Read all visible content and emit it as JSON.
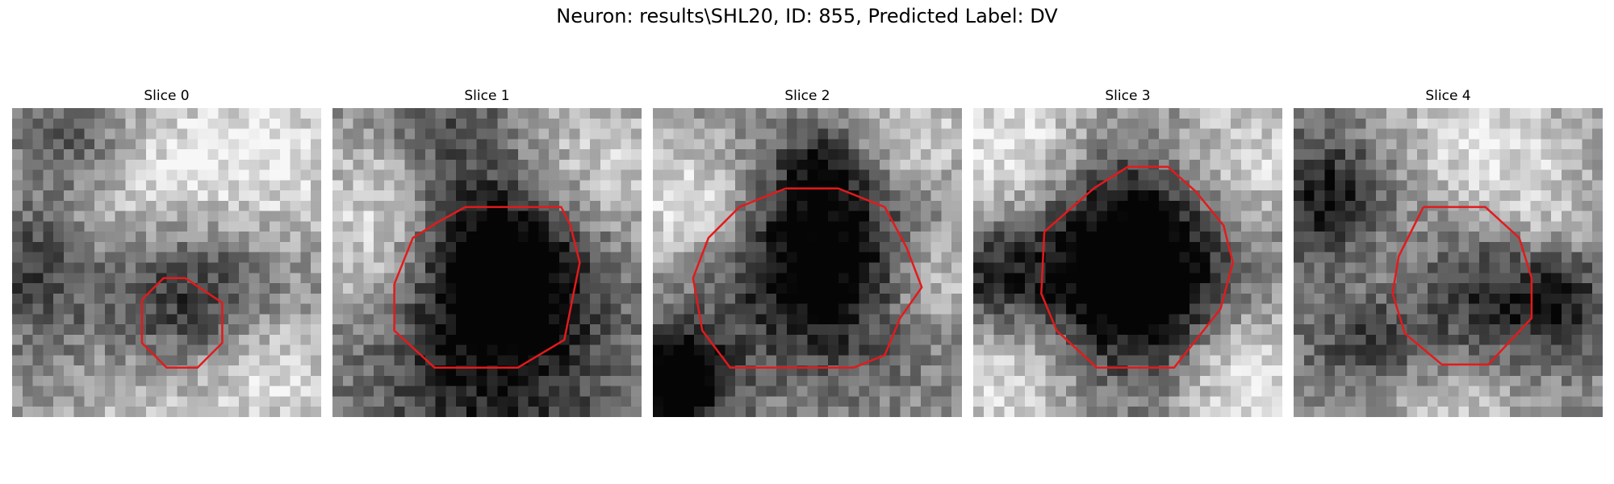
{
  "figure": {
    "title": "Neuron: results\\SHL20, ID: 855, Predicted Label: DV"
  },
  "contour_color": "#e31a1c",
  "image_grid": 30,
  "panels": [
    {
      "title": "Slice 0",
      "dark_blobs": [
        [
          0.22,
          0.12,
          0.14,
          0.35
        ],
        [
          0.6,
          0.62,
          0.18,
          0.4
        ],
        [
          0.33,
          0.64,
          0.25,
          0.3
        ],
        [
          0.05,
          0.5,
          0.12,
          0.25
        ]
      ],
      "light_blobs": [
        [
          0.4,
          0.25,
          0.22,
          0.4
        ],
        [
          0.85,
          0.15,
          0.2,
          0.35
        ],
        [
          0.45,
          0.9,
          0.25,
          0.35
        ],
        [
          0.85,
          0.85,
          0.15,
          0.3
        ]
      ],
      "contour": [
        [
          0.42,
          0.62
        ],
        [
          0.49,
          0.55
        ],
        [
          0.56,
          0.55
        ],
        [
          0.68,
          0.63
        ],
        [
          0.68,
          0.76
        ],
        [
          0.6,
          0.84
        ],
        [
          0.5,
          0.84
        ],
        [
          0.42,
          0.76
        ],
        [
          0.42,
          0.62
        ]
      ]
    },
    {
      "title": "Slice 1",
      "dark_blobs": [
        [
          0.55,
          0.52,
          0.2,
          0.75
        ],
        [
          0.5,
          0.9,
          0.3,
          0.35
        ],
        [
          0.3,
          0.05,
          0.2,
          0.3
        ]
      ],
      "light_blobs": [
        [
          0.15,
          0.45,
          0.18,
          0.35
        ],
        [
          0.85,
          0.2,
          0.2,
          0.3
        ],
        [
          0.15,
          0.15,
          0.15,
          0.25
        ]
      ],
      "contour": [
        [
          0.43,
          0.32
        ],
        [
          0.74,
          0.32
        ],
        [
          0.77,
          0.38
        ],
        [
          0.8,
          0.5
        ],
        [
          0.78,
          0.6
        ],
        [
          0.75,
          0.75
        ],
        [
          0.6,
          0.84
        ],
        [
          0.33,
          0.84
        ],
        [
          0.2,
          0.72
        ],
        [
          0.2,
          0.57
        ],
        [
          0.26,
          0.42
        ],
        [
          0.34,
          0.37
        ],
        [
          0.43,
          0.32
        ]
      ]
    },
    {
      "title": "Slice 2",
      "dark_blobs": [
        [
          0.55,
          0.5,
          0.22,
          0.7
        ],
        [
          0.08,
          0.88,
          0.12,
          0.8
        ],
        [
          0.55,
          0.2,
          0.1,
          0.3
        ]
      ],
      "light_blobs": [
        [
          0.12,
          0.3,
          0.15,
          0.4
        ],
        [
          0.88,
          0.55,
          0.12,
          0.35
        ],
        [
          0.85,
          0.1,
          0.15,
          0.3
        ]
      ],
      "contour": [
        [
          0.43,
          0.26
        ],
        [
          0.6,
          0.26
        ],
        [
          0.75,
          0.32
        ],
        [
          0.82,
          0.45
        ],
        [
          0.87,
          0.58
        ],
        [
          0.8,
          0.68
        ],
        [
          0.75,
          0.8
        ],
        [
          0.65,
          0.84
        ],
        [
          0.25,
          0.84
        ],
        [
          0.16,
          0.72
        ],
        [
          0.13,
          0.55
        ],
        [
          0.18,
          0.42
        ],
        [
          0.28,
          0.32
        ],
        [
          0.43,
          0.26
        ]
      ]
    },
    {
      "title": "Slice 3",
      "dark_blobs": [
        [
          0.5,
          0.52,
          0.25,
          0.95
        ],
        [
          0.05,
          0.55,
          0.12,
          0.4
        ]
      ],
      "light_blobs": [
        [
          0.15,
          0.15,
          0.2,
          0.45
        ],
        [
          0.85,
          0.2,
          0.18,
          0.4
        ],
        [
          0.15,
          0.85,
          0.2,
          0.4
        ],
        [
          0.85,
          0.85,
          0.18,
          0.45
        ]
      ],
      "contour": [
        [
          0.39,
          0.26
        ],
        [
          0.5,
          0.19
        ],
        [
          0.63,
          0.19
        ],
        [
          0.72,
          0.27
        ],
        [
          0.81,
          0.38
        ],
        [
          0.84,
          0.5
        ],
        [
          0.8,
          0.65
        ],
        [
          0.65,
          0.84
        ],
        [
          0.4,
          0.84
        ],
        [
          0.27,
          0.72
        ],
        [
          0.22,
          0.6
        ],
        [
          0.23,
          0.4
        ],
        [
          0.39,
          0.26
        ]
      ]
    },
    {
      "title": "Slice 4",
      "dark_blobs": [
        [
          0.12,
          0.3,
          0.15,
          0.5
        ],
        [
          0.6,
          0.6,
          0.2,
          0.45
        ],
        [
          0.25,
          0.75,
          0.15,
          0.35
        ],
        [
          0.85,
          0.6,
          0.12,
          0.4
        ]
      ],
      "light_blobs": [
        [
          0.6,
          0.1,
          0.2,
          0.35
        ],
        [
          0.8,
          0.4,
          0.15,
          0.3
        ],
        [
          0.5,
          0.95,
          0.2,
          0.3
        ],
        [
          0.3,
          0.5,
          0.15,
          0.25
        ]
      ],
      "contour": [
        [
          0.42,
          0.32
        ],
        [
          0.62,
          0.32
        ],
        [
          0.73,
          0.42
        ],
        [
          0.77,
          0.55
        ],
        [
          0.77,
          0.68
        ],
        [
          0.63,
          0.83
        ],
        [
          0.48,
          0.83
        ],
        [
          0.36,
          0.73
        ],
        [
          0.32,
          0.6
        ],
        [
          0.34,
          0.48
        ],
        [
          0.42,
          0.32
        ]
      ]
    }
  ]
}
